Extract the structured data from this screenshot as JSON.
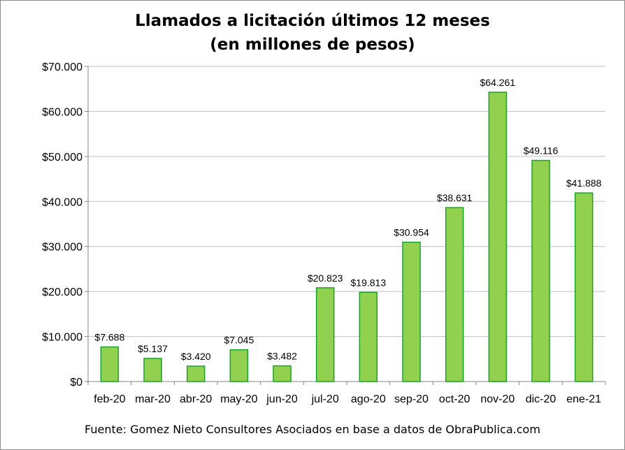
{
  "chart_data": {
    "type": "bar",
    "title": [
      "Llamados a licitación últimos 12 meses",
      "(en millones de pesos)"
    ],
    "xlabel": "",
    "ylabel": "",
    "categories": [
      "feb-20",
      "mar-20",
      "abr-20",
      "may-20",
      "jun-20",
      "jul-20",
      "ago-20",
      "sep-20",
      "oct-20",
      "nov-20",
      "dic-20",
      "ene-21"
    ],
    "values": [
      7688,
      5137,
      3420,
      7045,
      3482,
      20823,
      19813,
      30954,
      38631,
      64261,
      49116,
      41888
    ],
    "value_labels": [
      "$7.688",
      "$5.137",
      "$3.420",
      "$7.045",
      "$3.482",
      "$20.823",
      "$19.813",
      "$30.954",
      "$38.631",
      "$64.261",
      "$49.116",
      "$41.888"
    ],
    "ylim": [
      0,
      70000
    ],
    "yticks": [
      0,
      10000,
      20000,
      30000,
      40000,
      50000,
      60000,
      70000
    ],
    "ytick_labels": [
      "$0",
      "$10.000",
      "$20.000",
      "$30.000",
      "$40.000",
      "$50.000",
      "$60.000",
      "$70.000"
    ],
    "grid": true,
    "bar_color": "#92d050",
    "bar_edge_color": "#1aa32a",
    "grid_color": "#c0c0c0"
  },
  "footer": {
    "source": "Fuente: Gomez Nieto Consultores Asociados en base a datos de ObraPublica.com"
  }
}
